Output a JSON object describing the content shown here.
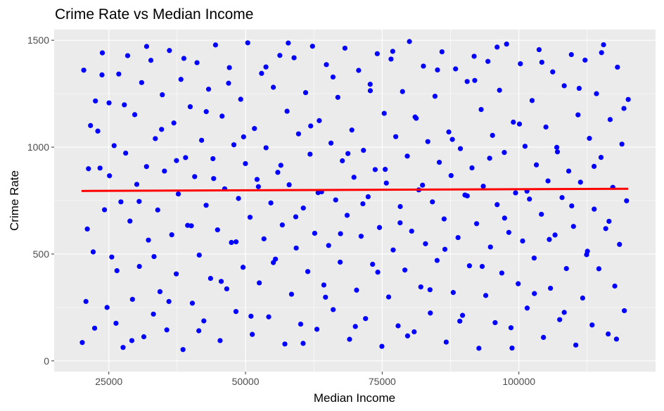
{
  "chart_data": {
    "type": "scatter",
    "title": "Crime Rate vs Median Income",
    "xlabel": "Median Income",
    "ylabel": "Crime Rate",
    "xlim": [
      15000,
      125000
    ],
    "ylim": [
      -50,
      1550
    ],
    "x_ticks": [
      25000,
      50000,
      75000,
      100000
    ],
    "x_tick_labels": [
      "25000",
      "50000",
      "75000",
      "100000"
    ],
    "y_ticks": [
      0,
      500,
      1000,
      1500
    ],
    "y_tick_labels": [
      "0",
      "500",
      "1000",
      "1500"
    ],
    "grid": true,
    "legend": "none",
    "colors": {
      "panel_background": "#ebebeb",
      "grid_line": "#ffffff",
      "points": "#0000ff",
      "trend_line": "#ff0000"
    },
    "trend_line": {
      "x": [
        20000,
        120000
      ],
      "y": [
        795,
        805
      ]
    },
    "points": [
      [
        20142,
        86
      ],
      [
        20413,
        1360
      ],
      [
        20813,
        278
      ],
      [
        21274,
        899
      ],
      [
        21652,
        1101
      ],
      [
        22138,
        510
      ],
      [
        22547,
        1216
      ],
      [
        22981,
        1075
      ],
      [
        23391,
        902
      ],
      [
        23814,
        1441
      ],
      [
        24206,
        707
      ],
      [
        24675,
        250
      ],
      [
        25038,
        1207
      ],
      [
        25532,
        486
      ],
      [
        25964,
        1007
      ],
      [
        26313,
        176
      ],
      [
        26818,
        1342
      ],
      [
        27205,
        744
      ],
      [
        27604,
        63
      ],
      [
        28079,
        972
      ],
      [
        28439,
        1428
      ],
      [
        28863,
        654
      ],
      [
        29320,
        288
      ],
      [
        29736,
        1152
      ],
      [
        30112,
        826
      ],
      [
        30584,
        442
      ],
      [
        31002,
        1302
      ],
      [
        31403,
        113
      ],
      [
        31891,
        909
      ],
      [
        32242,
        565
      ],
      [
        32695,
        1406
      ],
      [
        33154,
        219
      ],
      [
        33504,
        1040
      ],
      [
        33944,
        706
      ],
      [
        34351,
        324
      ],
      [
        34783,
        1245
      ],
      [
        35173,
        888
      ],
      [
        35605,
        145
      ],
      [
        36083,
        1452
      ],
      [
        36510,
        590
      ],
      [
        36891,
        1113
      ],
      [
        37335,
        407
      ],
      [
        37712,
        781
      ],
      [
        38190,
        1317
      ],
      [
        38564,
        53
      ],
      [
        39034,
        951
      ],
      [
        39409,
        634
      ],
      [
        39888,
        1189
      ],
      [
        40275,
        270
      ],
      [
        40701,
        862
      ],
      [
        41127,
        1395
      ],
      [
        41535,
        495
      ],
      [
        41969,
        1032
      ],
      [
        42373,
        187
      ],
      [
        42798,
        728
      ],
      [
        43243,
        1271
      ],
      [
        43605,
        386
      ],
      [
        44045,
        946
      ],
      [
        44514,
        1478
      ],
      [
        44882,
        613
      ],
      [
        45356,
        95
      ],
      [
        45712,
        1145
      ],
      [
        46192,
        805
      ],
      [
        46568,
        337
      ],
      [
        47048,
        1372
      ],
      [
        47423,
        554
      ],
      [
        47873,
        1011
      ],
      [
        48252,
        231
      ],
      [
        48716,
        760
      ],
      [
        49117,
        1224
      ],
      [
        49551,
        438
      ],
      [
        49984,
        923
      ],
      [
        50409,
        1488
      ],
      [
        50830,
        672
      ],
      [
        51238,
        124
      ],
      [
        51635,
        1087
      ],
      [
        52112,
        849
      ],
      [
        52519,
        365
      ],
      [
        52937,
        1345
      ],
      [
        53370,
        571
      ],
      [
        53753,
        997
      ],
      [
        54243,
        206
      ],
      [
        54635,
        739
      ],
      [
        55092,
        1280
      ],
      [
        55475,
        476
      ],
      [
        55903,
        882
      ],
      [
        56278,
        1429
      ],
      [
        56730,
        636
      ],
      [
        57197,
        79
      ],
      [
        57596,
        1168
      ],
      [
        57984,
        824
      ],
      [
        58413,
        312
      ],
      [
        58879,
        1418
      ],
      [
        59271,
        528
      ],
      [
        59695,
        1062
      ],
      [
        60088,
        172
      ],
      [
        60574,
        715
      ],
      [
        60993,
        1255
      ],
      [
        61387,
        418
      ],
      [
        61807,
        967
      ],
      [
        62252,
        1472
      ],
      [
        62652,
        597
      ],
      [
        63060,
        148
      ],
      [
        63488,
        1124
      ],
      [
        63911,
        791
      ],
      [
        64327,
        355
      ],
      [
        64790,
        1386
      ],
      [
        65201,
        540
      ],
      [
        65636,
        1019
      ],
      [
        66034,
        240
      ],
      [
        66492,
        753
      ],
      [
        66887,
        1233
      ],
      [
        67311,
        462
      ],
      [
        67711,
        936
      ],
      [
        68184,
        1463
      ],
      [
        68584,
        681
      ],
      [
        69031,
        101
      ],
      [
        69451,
        1080
      ],
      [
        69833,
        859
      ],
      [
        70314,
        331
      ],
      [
        70691,
        1359
      ],
      [
        71147,
        583
      ],
      [
        71575,
        985
      ],
      [
        71955,
        198
      ],
      [
        72429,
        768
      ],
      [
        72802,
        1294
      ],
      [
        73245,
        452
      ],
      [
        73715,
        895
      ],
      [
        74097,
        1437
      ],
      [
        74505,
        624
      ],
      [
        74943,
        68
      ],
      [
        75369,
        1158
      ],
      [
        75760,
        832
      ],
      [
        76181,
        299
      ],
      [
        76615,
        1412
      ],
      [
        77005,
        519
      ],
      [
        77477,
        1049
      ],
      [
        77910,
        164
      ],
      [
        78302,
        722
      ],
      [
        78714,
        1260
      ],
      [
        79148,
        425
      ],
      [
        79589,
        958
      ],
      [
        79982,
        1494
      ],
      [
        80388,
        607
      ],
      [
        80847,
        136
      ],
      [
        81220,
        1135
      ],
      [
        81692,
        800
      ],
      [
        82066,
        346
      ],
      [
        82540,
        1379
      ],
      [
        82917,
        548
      ],
      [
        83346,
        1026
      ],
      [
        83804,
        224
      ],
      [
        84187,
        744
      ],
      [
        84659,
        1238
      ],
      [
        85040,
        470
      ],
      [
        85447,
        929
      ],
      [
        85934,
        1446
      ],
      [
        86324,
        664
      ],
      [
        86707,
        88
      ],
      [
        87183,
        1071
      ],
      [
        87603,
        867
      ],
      [
        87994,
        320
      ],
      [
        88420,
        1366
      ],
      [
        88873,
        577
      ],
      [
        89303,
        993
      ],
      [
        89695,
        213
      ],
      [
        90135,
        776
      ],
      [
        90541,
        1307
      ],
      [
        90958,
        445
      ],
      [
        91420,
        903
      ],
      [
        91817,
        1425
      ],
      [
        92268,
        642
      ],
      [
        92691,
        59
      ],
      [
        93098,
        1176
      ],
      [
        93492,
        817
      ],
      [
        93942,
        306
      ],
      [
        94339,
        1401
      ],
      [
        94796,
        533
      ],
      [
        95175,
        1055
      ],
      [
        95650,
        179
      ],
      [
        96024,
        731
      ],
      [
        96458,
        1266
      ],
      [
        96878,
        411
      ],
      [
        97333,
        975
      ],
      [
        97749,
        1482
      ],
      [
        98162,
        601
      ],
      [
        98558,
        155
      ],
      [
        98985,
        1117
      ],
      [
        99397,
        786
      ],
      [
        99874,
        361
      ],
      [
        100275,
        1390
      ],
      [
        100685,
        561
      ],
      [
        101124,
        1004
      ],
      [
        101514,
        247
      ],
      [
        101936,
        757
      ],
      [
        102418,
        1218
      ],
      [
        102793,
        481
      ],
      [
        103202,
        917
      ],
      [
        103698,
        1456
      ],
      [
        104117,
        686
      ],
      [
        104498,
        110
      ],
      [
        104942,
        1094
      ],
      [
        105326,
        842
      ],
      [
        105783,
        340
      ],
      [
        106188,
        1352
      ],
      [
        106611,
        589
      ],
      [
        107052,
        978
      ],
      [
        107461,
        193
      ],
      [
        107899,
        764
      ],
      [
        108294,
        1287
      ],
      [
        108693,
        432
      ],
      [
        109116,
        888
      ],
      [
        109599,
        1433
      ],
      [
        109987,
        629
      ],
      [
        110413,
        74
      ],
      [
        110818,
        1151
      ],
      [
        111265,
        836
      ],
      [
        111668,
        294
      ],
      [
        112103,
        1407
      ],
      [
        112539,
        513
      ],
      [
        112904,
        1041
      ],
      [
        113393,
        168
      ],
      [
        113774,
        710
      ],
      [
        114189,
        1250
      ],
      [
        114629,
        431
      ],
      [
        115028,
        952
      ],
      [
        115487,
        1479
      ],
      [
        115888,
        619
      ],
      [
        116335,
        126
      ],
      [
        116694,
        1129
      ],
      [
        117182,
        812
      ],
      [
        117543,
        350
      ],
      [
        118028,
        1374
      ],
      [
        118407,
        545
      ],
      [
        118846,
        1014
      ],
      [
        119288,
        235
      ],
      [
        119701,
        749
      ],
      [
        120000,
        1223
      ],
      [
        21058,
        617
      ],
      [
        22403,
        153
      ],
      [
        23746,
        1338
      ],
      [
        25120,
        866
      ],
      [
        26483,
        422
      ],
      [
        27839,
        1198
      ],
      [
        29210,
        95
      ],
      [
        30544,
        746
      ],
      [
        31912,
        1471
      ],
      [
        33266,
        488
      ],
      [
        34647,
        1083
      ],
      [
        35988,
        278
      ],
      [
        37372,
        937
      ],
      [
        38728,
        1415
      ],
      [
        40083,
        632
      ],
      [
        41461,
        141
      ],
      [
        42817,
        1166
      ],
      [
        44169,
        853
      ],
      [
        45553,
        372
      ],
      [
        46904,
        1299
      ],
      [
        48270,
        557
      ],
      [
        49648,
        1048
      ],
      [
        51002,
        209
      ],
      [
        52357,
        815
      ],
      [
        53736,
        1375
      ],
      [
        55092,
        460
      ],
      [
        56462,
        915
      ],
      [
        57820,
        1487
      ],
      [
        59188,
        674
      ],
      [
        60539,
        82
      ],
      [
        61921,
        1099
      ],
      [
        63276,
        787
      ],
      [
        64635,
        298
      ],
      [
        66007,
        1328
      ],
      [
        67372,
        595
      ],
      [
        68735,
        970
      ],
      [
        70089,
        161
      ],
      [
        71463,
        735
      ],
      [
        72825,
        1264
      ],
      [
        74193,
        415
      ],
      [
        75549,
        896
      ],
      [
        76923,
        1448
      ],
      [
        78276,
        646
      ],
      [
        79640,
        117
      ],
      [
        81018,
        1141
      ],
      [
        82377,
        822
      ],
      [
        83744,
        333
      ],
      [
        85111,
        1361
      ],
      [
        86471,
        522
      ],
      [
        87833,
        1036
      ],
      [
        89196,
        186
      ],
      [
        90559,
        772
      ],
      [
        91927,
        1312
      ],
      [
        93288,
        442
      ],
      [
        94651,
        948
      ],
      [
        96019,
        1468
      ],
      [
        97380,
        668
      ],
      [
        98748,
        60
      ],
      [
        100107,
        1108
      ],
      [
        101478,
        794
      ],
      [
        102839,
        315
      ],
      [
        104202,
        1397
      ],
      [
        105566,
        568
      ],
      [
        106933,
        999
      ],
      [
        108297,
        227
      ],
      [
        109664,
        725
      ],
      [
        111028,
        1275
      ],
      [
        112391,
        497
      ],
      [
        113755,
        910
      ],
      [
        115120,
        1442
      ],
      [
        116486,
        653
      ],
      [
        117849,
        102
      ],
      [
        119214,
        1181
      ]
    ]
  }
}
